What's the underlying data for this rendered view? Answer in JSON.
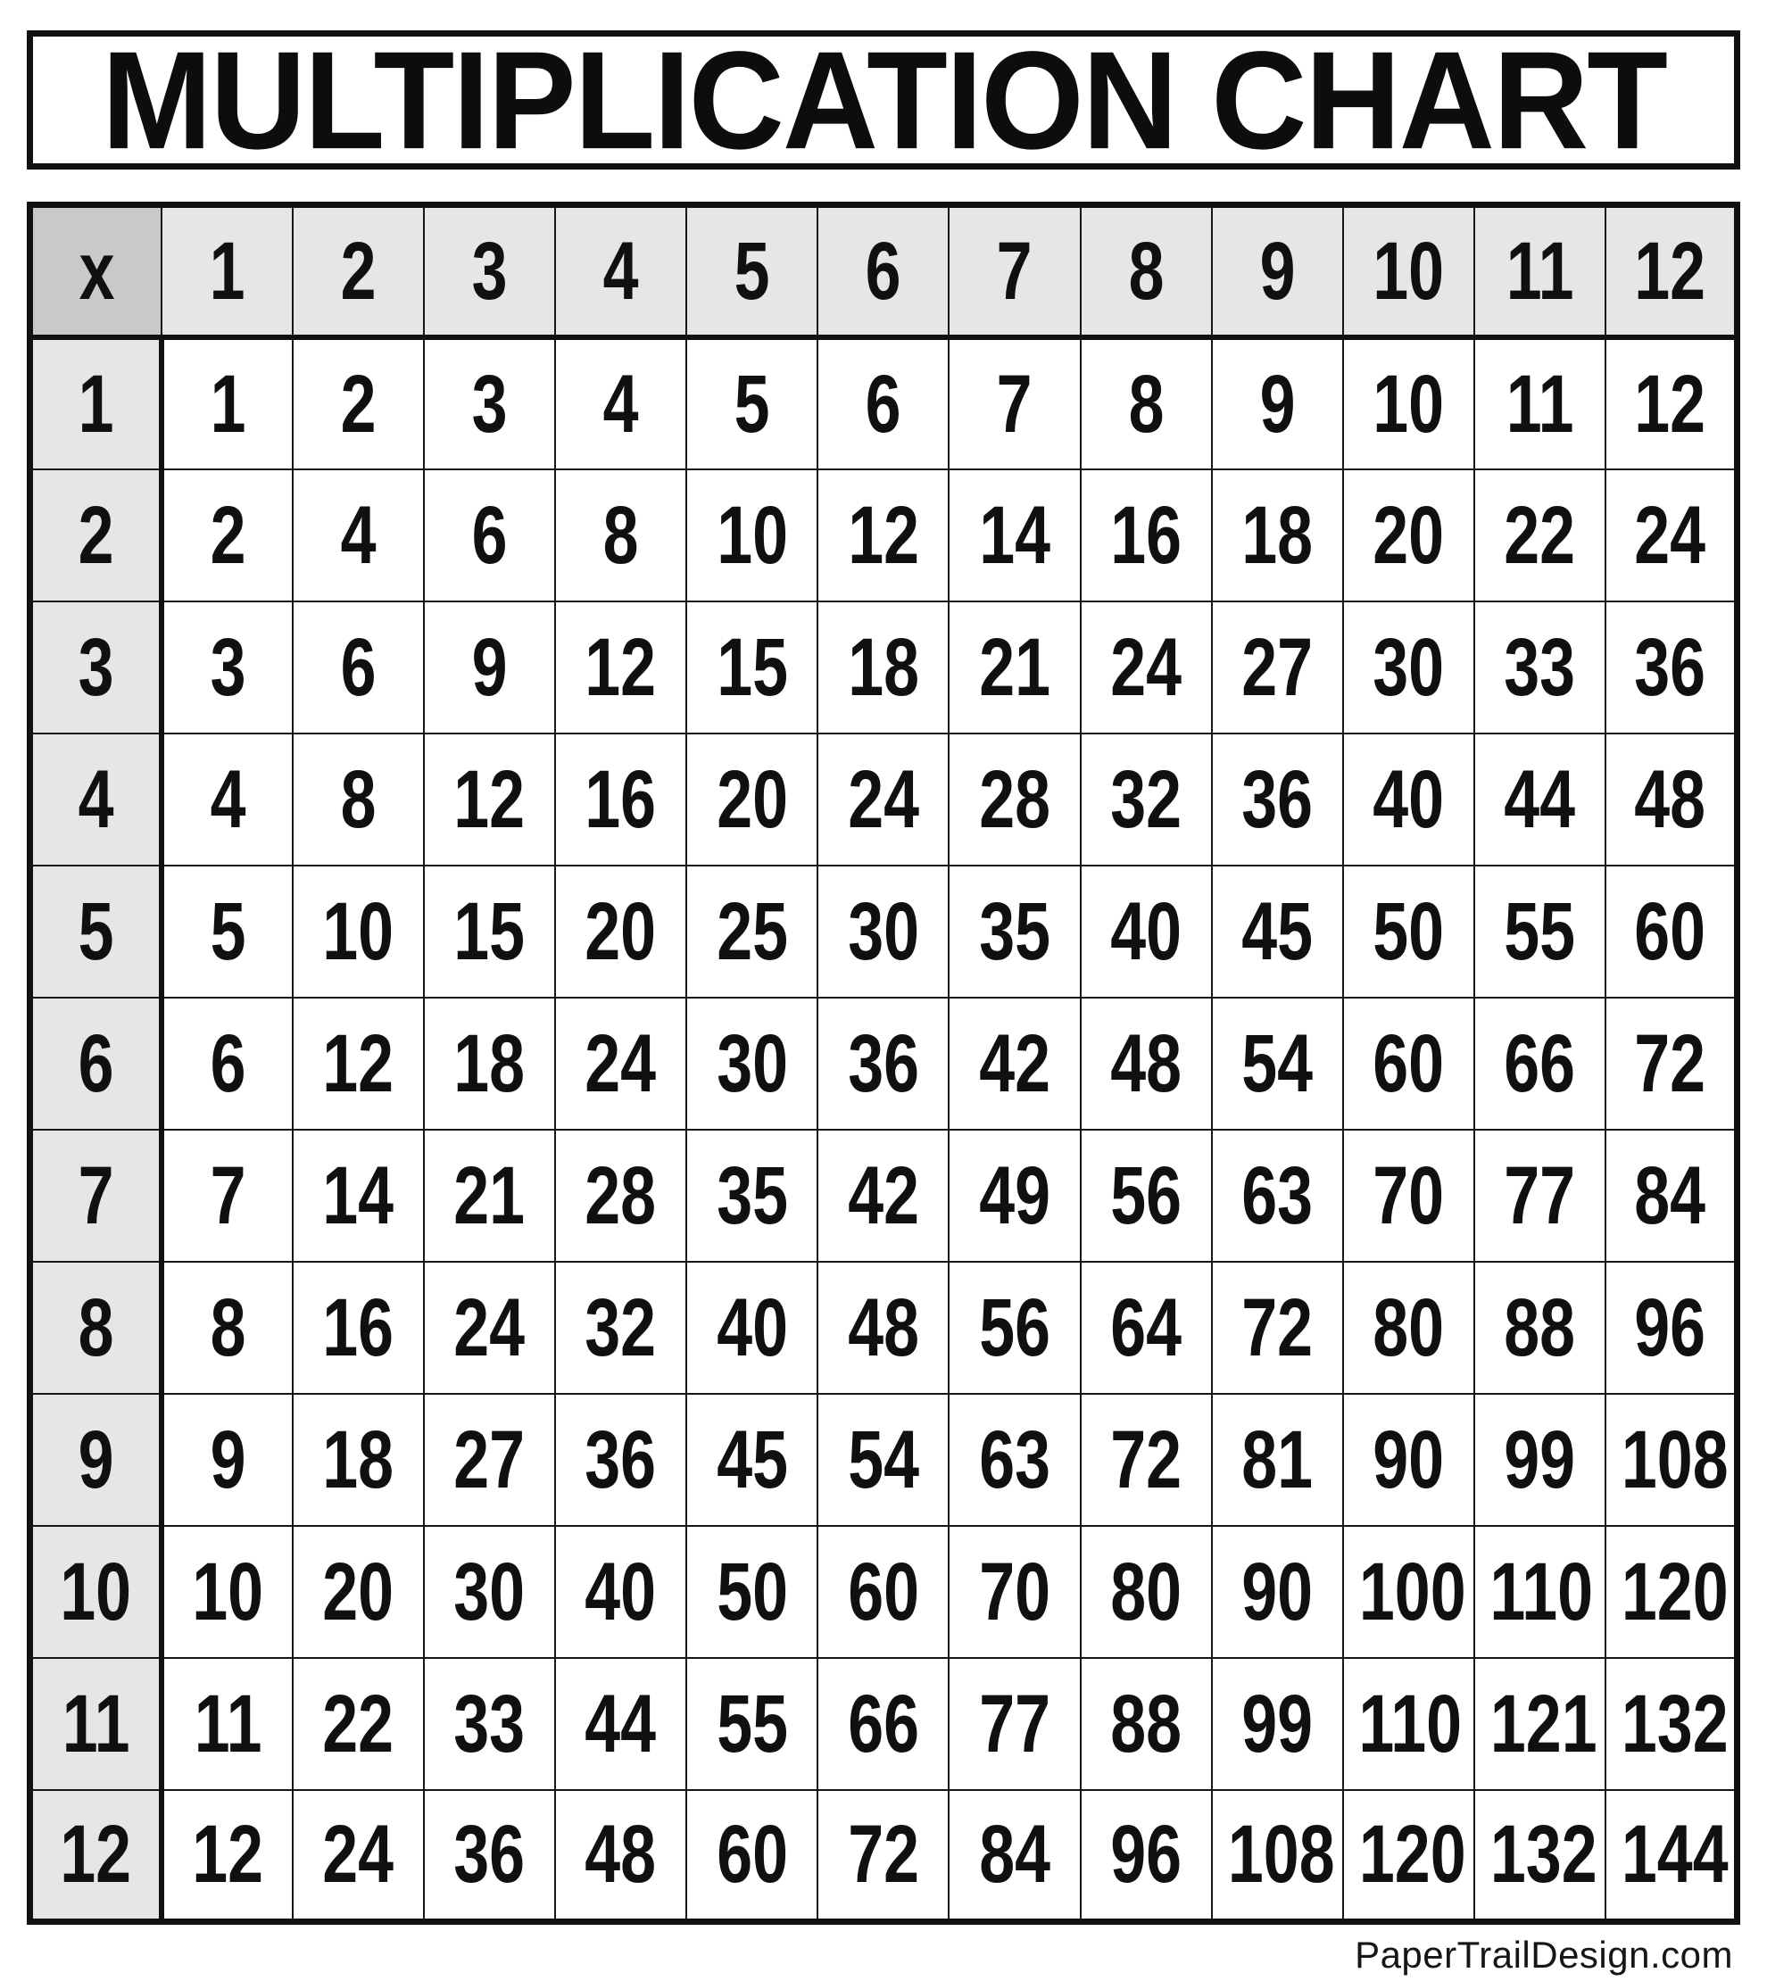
{
  "title": {
    "text": "MULTIPLICATION CHART"
  },
  "footer": {
    "credit": "PaperTrailDesign.com"
  },
  "colors": {
    "border": "#111111",
    "corner_bg": "#c9c9c9",
    "header_bg": "#e6e6e6",
    "cell_bg": "#ffffff",
    "text": "#111111"
  },
  "chart_data": {
    "type": "table",
    "title": "MULTIPLICATION CHART",
    "corner_label": "x",
    "column_headers": [
      "1",
      "2",
      "3",
      "4",
      "5",
      "6",
      "7",
      "8",
      "9",
      "10",
      "11",
      "12"
    ],
    "row_headers": [
      "1",
      "2",
      "3",
      "4",
      "5",
      "6",
      "7",
      "8",
      "9",
      "10",
      "11",
      "12"
    ],
    "rows": [
      [
        1,
        2,
        3,
        4,
        5,
        6,
        7,
        8,
        9,
        10,
        11,
        12
      ],
      [
        2,
        4,
        6,
        8,
        10,
        12,
        14,
        16,
        18,
        20,
        22,
        24
      ],
      [
        3,
        6,
        9,
        12,
        15,
        18,
        21,
        24,
        27,
        30,
        33,
        36
      ],
      [
        4,
        8,
        12,
        16,
        20,
        24,
        28,
        32,
        36,
        40,
        44,
        48
      ],
      [
        5,
        10,
        15,
        20,
        25,
        30,
        35,
        40,
        45,
        50,
        55,
        60
      ],
      [
        6,
        12,
        18,
        24,
        30,
        36,
        42,
        48,
        54,
        60,
        66,
        72
      ],
      [
        7,
        14,
        21,
        28,
        35,
        42,
        49,
        56,
        63,
        70,
        77,
        84
      ],
      [
        8,
        16,
        24,
        32,
        40,
        48,
        56,
        64,
        72,
        80,
        88,
        96
      ],
      [
        9,
        18,
        27,
        36,
        45,
        54,
        63,
        72,
        81,
        90,
        99,
        108
      ],
      [
        10,
        20,
        30,
        40,
        50,
        60,
        70,
        80,
        90,
        100,
        110,
        120
      ],
      [
        11,
        22,
        33,
        44,
        55,
        66,
        77,
        88,
        99,
        110,
        121,
        132
      ],
      [
        12,
        24,
        36,
        48,
        60,
        72,
        84,
        96,
        108,
        120,
        132,
        144
      ]
    ]
  }
}
